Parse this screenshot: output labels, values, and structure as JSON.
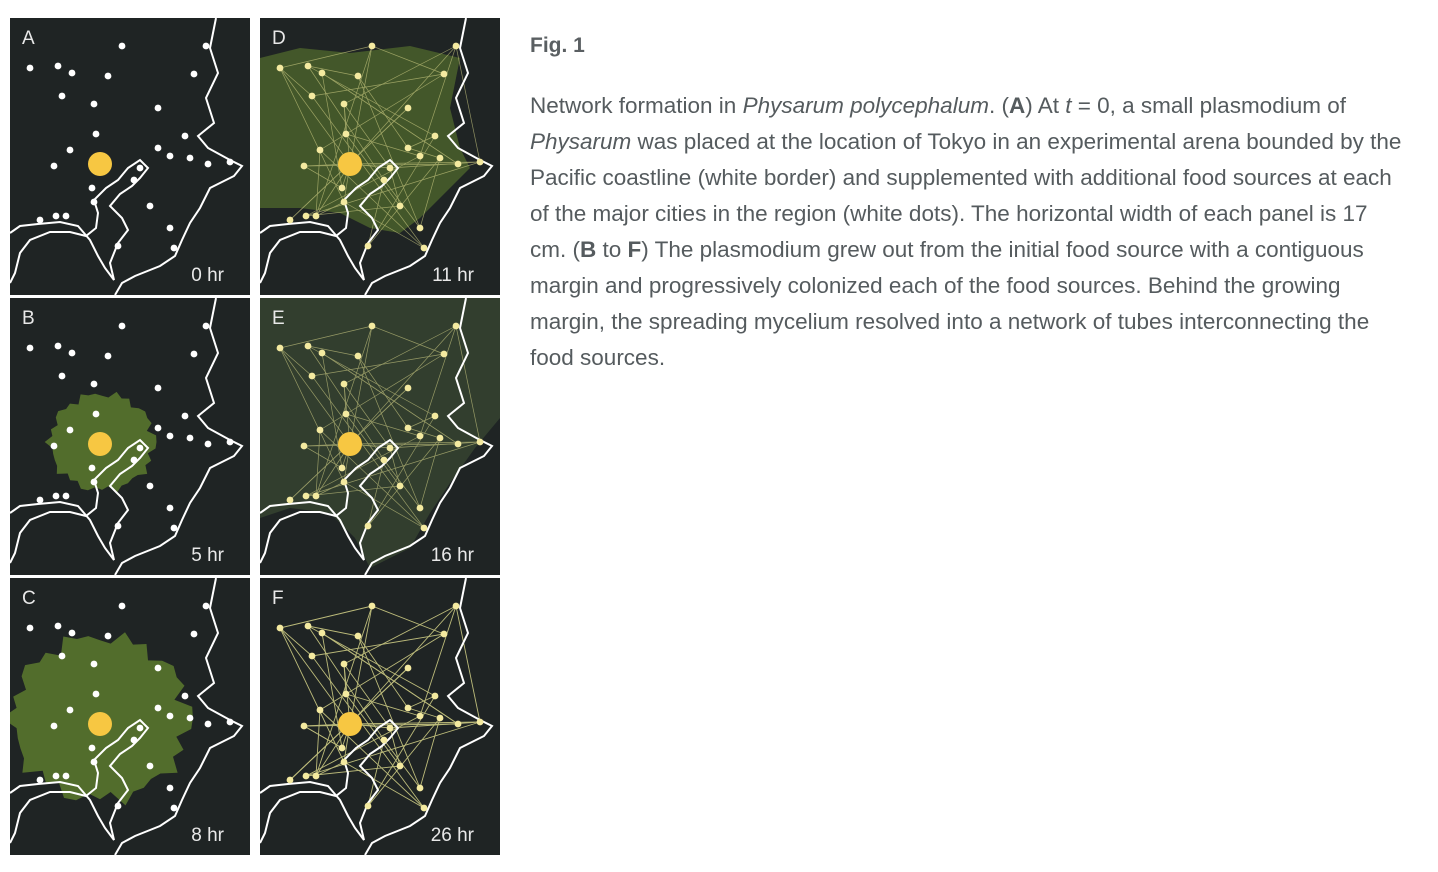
{
  "figure": {
    "panels": [
      {
        "letter": "A",
        "time": "0 hr",
        "stage": "initial"
      },
      {
        "letter": "B",
        "time": "5 hr",
        "stage": "small"
      },
      {
        "letter": "C",
        "time": "8 hr",
        "stage": "large"
      },
      {
        "letter": "D",
        "time": "11 hr",
        "stage": "spread"
      },
      {
        "letter": "E",
        "time": "16 hr",
        "stage": "full"
      },
      {
        "letter": "F",
        "time": "26 hr",
        "stage": "network"
      }
    ],
    "colors": {
      "background": "#1f2424",
      "coastline": "#ffffff",
      "food_source": "#ffffff",
      "plasmodium": "#f7c742",
      "mycelium": "#5c7a2e",
      "tubes": "#d8d68a"
    }
  },
  "caption": {
    "title": "Fig. 1",
    "segments": [
      {
        "t": "Network formation in "
      },
      {
        "t": "Physarum polycephalum",
        "s": "i"
      },
      {
        "t": ". ("
      },
      {
        "t": "A",
        "s": "b"
      },
      {
        "t": ") At "
      },
      {
        "t": "t",
        "s": "i"
      },
      {
        "t": " = 0, a small plasmodium of "
      },
      {
        "t": "Physarum",
        "s": "i"
      },
      {
        "t": " was placed at the location of Tokyo in an experimental arena bounded by the Pacific coastline (white border) and supplemented with additional food sources at each of the major cities in the region (white dots). The horizontal width of each panel is 17 cm. ("
      },
      {
        "t": "B",
        "s": "b"
      },
      {
        "t": " to "
      },
      {
        "t": "F",
        "s": "b"
      },
      {
        "t": ") The plasmodium grew out from the initial food source with a contiguous margin and progressively colonized each of the food sources. Behind the growing margin, the spreading mycelium resolved into a network of tubes interconnecting the food sources."
      }
    ]
  }
}
